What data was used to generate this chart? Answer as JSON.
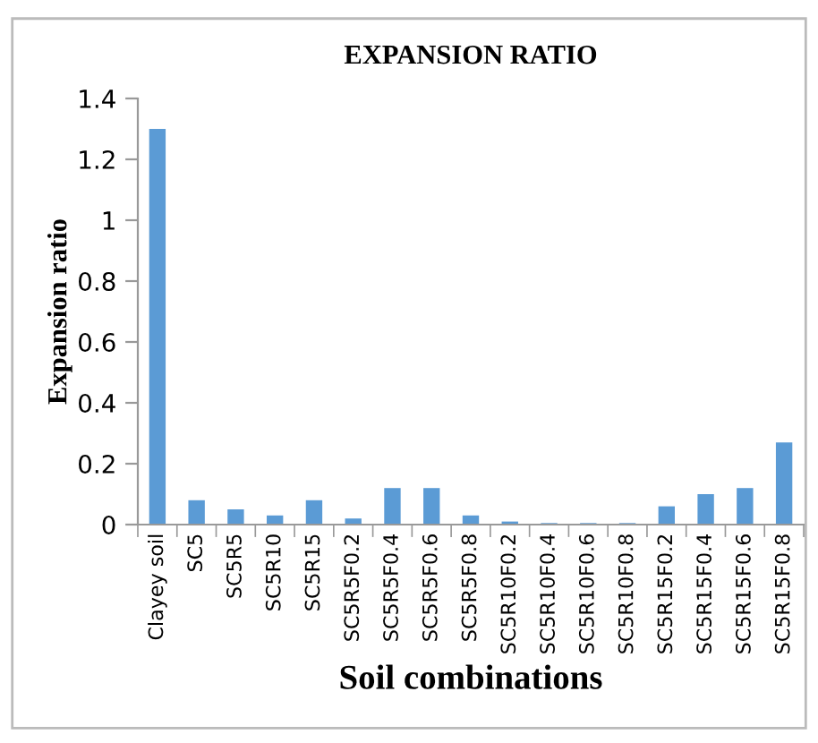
{
  "chart_data": {
    "type": "bar",
    "title": "EXPANSION RATIO",
    "xlabel": "Soil combinations",
    "ylabel": "Expansion ratio",
    "categories": [
      "Clayey soil",
      "SC5",
      "SC5R5",
      "SC5R10",
      "SC5R15",
      "SC5R5F0.2",
      "SC5R5F0.4",
      "SC5R5F0.6",
      "SC5R5F0.8",
      "SC5R10F0.2",
      "SC5R10F0.4",
      "SC5R10F0.6",
      "SC5R10F0.8",
      "SC5R15F0.2",
      "SC5R15F0.4",
      "SC5R15F0.6",
      "SC5R15F0.8"
    ],
    "values": [
      1.3,
      0.08,
      0.05,
      0.03,
      0.08,
      0.02,
      0.12,
      0.12,
      0.03,
      0.01,
      0.005,
      0.005,
      0.005,
      0.06,
      0.1,
      0.12,
      0.27
    ],
    "color": "#5b9bd5",
    "ylim": [
      0,
      1.4
    ],
    "yticks": [
      0,
      0.2,
      0.4,
      0.6,
      0.8,
      1,
      1.2,
      1.4
    ],
    "grid": false,
    "legend": false
  }
}
